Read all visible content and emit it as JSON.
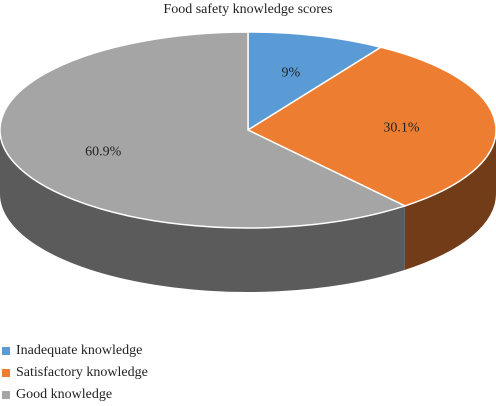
{
  "chart_data": {
    "type": "pie",
    "title": "Food safety knowledge scores",
    "legend_position": "bottom-left",
    "series": [
      {
        "name": "Inadequate knowledge",
        "value": 9,
        "label": "9%",
        "color": "#5b9bd5"
      },
      {
        "name": "Satisfactory knowledge",
        "value": 30.1,
        "label": "30.1%",
        "color": "#ed7d31"
      },
      {
        "name": "Good knowledge",
        "value": 60.9,
        "label": "60.9%",
        "color": "#a5a5a5"
      }
    ]
  }
}
